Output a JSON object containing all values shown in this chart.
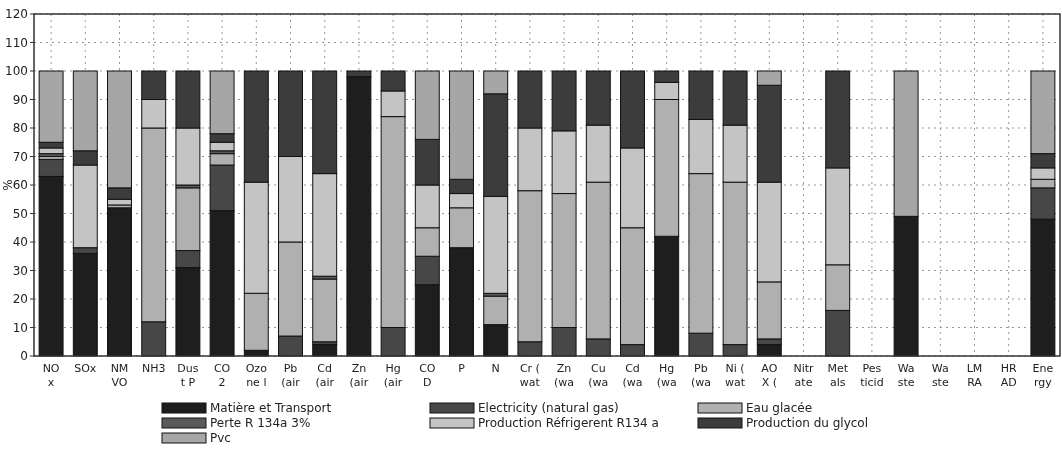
{
  "chart_data": {
    "type": "bar",
    "stacked": true,
    "ylabel": "%",
    "ylim": [
      0,
      120
    ],
    "yticks": [
      0,
      10,
      20,
      30,
      40,
      50,
      60,
      70,
      80,
      90,
      100,
      110,
      120
    ],
    "grid": true,
    "legend": "bottom",
    "categories": [
      "NO\nx",
      "SOx",
      "NM\nVO",
      "NH3",
      "Dus\nt P",
      "CO\n2",
      "Ozo\nne l",
      "Pb\n(air",
      "Cd\n(air",
      "Zn\n(air",
      "Hg\n(air",
      "CO\nD",
      "P",
      "N",
      "Cr (\nwat",
      "Zn\n(wa",
      "Cu\n(wa",
      "Cd\n(wa",
      "Hg\n(wa",
      "Pb\n(wa",
      "Ni (\nwat",
      "AO\nX (",
      "Nitr\nate",
      "Met\nals",
      "Pes\nticid",
      "Wa\nste",
      "Wa\nste",
      "LM\nRA",
      "HR\nAD",
      "Ene\nrgy"
    ],
    "series": [
      {
        "name": "Matière et Transport",
        "color": "#1e1e1e",
        "values": [
          63,
          36,
          52,
          0,
          31,
          51,
          2,
          0,
          4,
          98,
          0,
          25,
          38,
          11,
          0,
          0,
          0,
          0,
          42,
          0,
          0,
          4,
          null,
          0,
          null,
          49,
          null,
          null,
          null,
          48
        ]
      },
      {
        "name": "Electricity (natural gas)",
        "color": "#474747",
        "values": [
          6,
          2,
          0,
          12,
          6,
          16,
          0,
          7,
          1,
          0,
          10,
          10,
          0,
          0,
          5,
          10,
          6,
          4,
          0,
          8,
          4,
          2,
          null,
          16,
          null,
          0,
          null,
          null,
          null,
          11
        ]
      },
      {
        "name": "Eau glacée",
        "color": "#b0b0b0",
        "values": [
          1,
          0,
          1,
          68,
          22,
          4,
          20,
          33,
          22,
          0,
          74,
          10,
          14,
          10,
          53,
          47,
          55,
          41,
          48,
          56,
          57,
          20,
          null,
          16,
          null,
          0,
          null,
          null,
          null,
          3
        ]
      },
      {
        "name": "Perte R 134a 3%",
        "color": "#5a5a5a",
        "values": [
          1,
          0,
          0,
          0,
          1,
          1,
          0,
          0,
          1,
          0,
          0,
          0,
          0,
          1,
          0,
          0,
          0,
          0,
          0,
          0,
          0,
          0,
          null,
          0,
          null,
          0,
          null,
          null,
          null,
          0
        ]
      },
      {
        "name": "Production Réfrigerent R134 a",
        "color": "#c4c4c4",
        "values": [
          2,
          29,
          2,
          10,
          20,
          3,
          39,
          30,
          36,
          0,
          9,
          15,
          5,
          34,
          22,
          22,
          20,
          28,
          6,
          19,
          20,
          35,
          null,
          34,
          null,
          0,
          null,
          null,
          null,
          4
        ]
      },
      {
        "name": "Production du glycol",
        "color": "#3c3c3c",
        "values": [
          2,
          5,
          4,
          10,
          20,
          3,
          39,
          30,
          36,
          2,
          7,
          16,
          5,
          36,
          20,
          21,
          19,
          27,
          4,
          17,
          19,
          34,
          null,
          34,
          null,
          0,
          null,
          null,
          null,
          5
        ]
      },
      {
        "name": "Pvc",
        "color": "#a6a6a6",
        "values": [
          25,
          28,
          41,
          0,
          0,
          22,
          0,
          0,
          0,
          0,
          0,
          24,
          38,
          8,
          0,
          0,
          0,
          0,
          0,
          0,
          0,
          5,
          null,
          0,
          null,
          51,
          null,
          null,
          null,
          29
        ]
      }
    ]
  }
}
